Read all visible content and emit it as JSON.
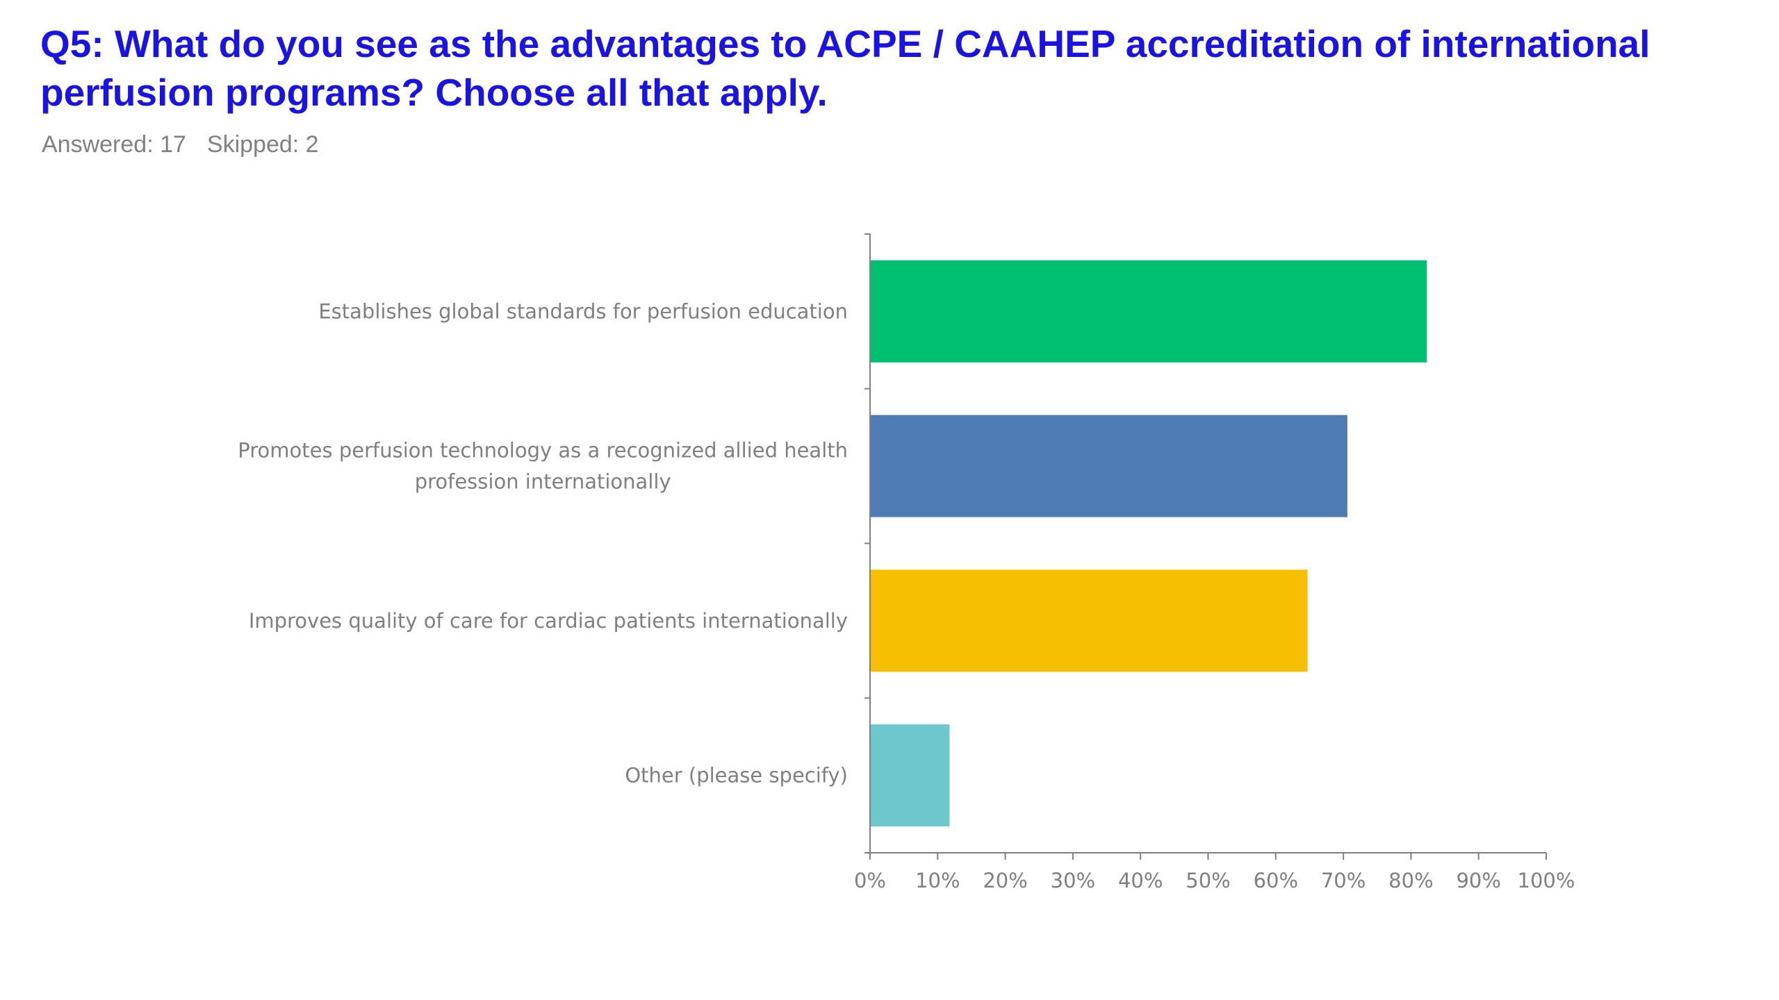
{
  "header": {
    "title": "Q5: What do you see as the advantages to ACPE / CAAHEP accreditation of international perfusion programs? Choose all that apply.",
    "answered": "Answered: 17",
    "skipped": "Skipped: 2"
  },
  "chart_data": {
    "type": "bar",
    "orientation": "horizontal",
    "title": "",
    "xlabel": "",
    "ylabel": "",
    "xlim": [
      0,
      100
    ],
    "grid": false,
    "legend": "none",
    "categories": [
      [
        "Establishes global standards for perfusion education"
      ],
      [
        "Promotes perfusion technology as a recognized allied health",
        "profession internationally"
      ],
      [
        "Improves quality of care for cardiac patients internationally"
      ],
      [
        "Other (please specify)"
      ]
    ],
    "values": [
      82.35,
      70.59,
      64.71,
      11.76
    ],
    "colors": [
      "#00c071",
      "#507cb6",
      "#f6bf00",
      "#6dc8cd"
    ],
    "x_ticks": [
      "0%",
      "10%",
      "20%",
      "30%",
      "40%",
      "50%",
      "60%",
      "70%",
      "80%",
      "90%",
      "100%"
    ],
    "axis_color": "#7f7f7f",
    "label_color": "#7f7f7f"
  }
}
